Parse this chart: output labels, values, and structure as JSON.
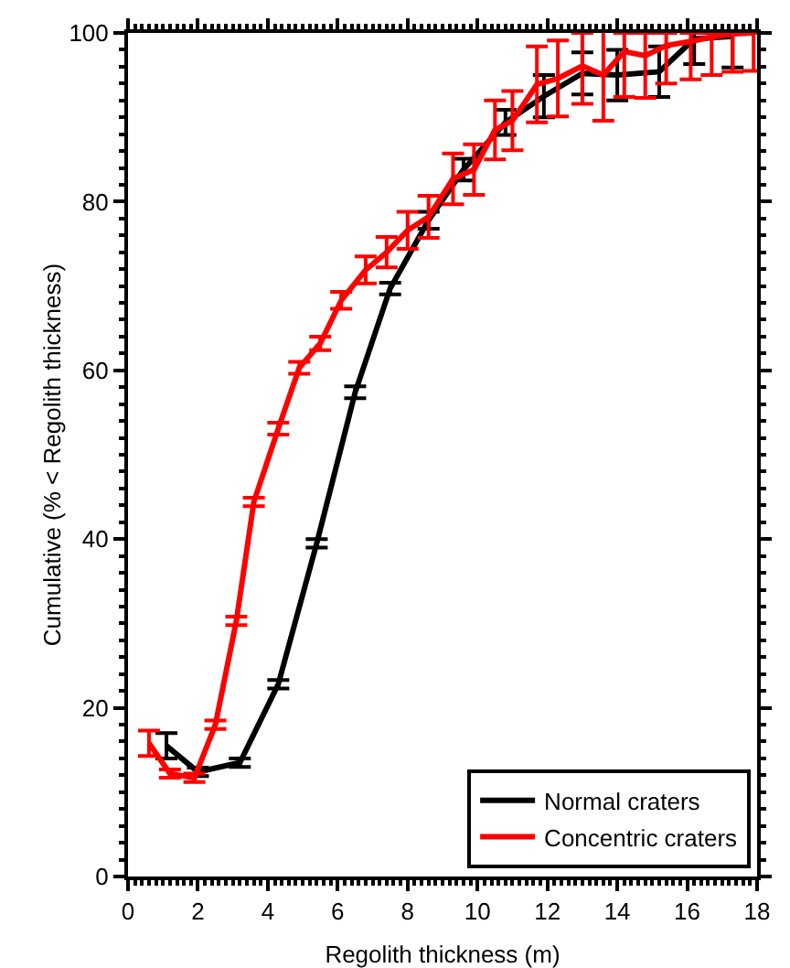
{
  "chart_data": {
    "type": "line",
    "xlabel": "Regolith thickness (m)",
    "ylabel": "Cumulative (% < Regolith thickness)",
    "xlim": [
      0,
      18
    ],
    "xticks": [
      0,
      2,
      4,
      6,
      8,
      10,
      12,
      14,
      16,
      18
    ],
    "ylim": [
      0,
      100
    ],
    "yticks": [
      0,
      20,
      40,
      60,
      80,
      100
    ],
    "grid": false,
    "legend": "bottom right",
    "marker": "none",
    "line_style": "solid",
    "series": [
      {
        "name": "Normal craters",
        "color": "#000000",
        "x": [
          1.1,
          2.0,
          3.2,
          4.3,
          5.4,
          6.5,
          7.5,
          8.6,
          9.6,
          10.8,
          11.9,
          13.0,
          14.0,
          15.2,
          16.2,
          17.3
        ],
        "values": [
          15.5,
          12.4,
          13.5,
          22.8,
          39.5,
          57.4,
          69.7,
          77.8,
          83.8,
          89.4,
          92.5,
          95.2,
          95,
          95.4,
          99.3,
          99.6
        ],
        "errors": [
          1.5,
          0.5,
          0.5,
          0.5,
          0.5,
          0.7,
          0.7,
          1,
          1.3,
          1.5,
          2.5,
          2.5,
          3,
          3,
          [
            96.3,
            100
          ],
          [
            95.9,
            100
          ]
        ]
      },
      {
        "name": "Concentric craters",
        "color": "#ff0000",
        "x": [
          0.6,
          1.2,
          1.9,
          2.5,
          3.1,
          3.6,
          4.3,
          4.9,
          5.5,
          6.1,
          6.8,
          7.4,
          8.0,
          8.6,
          9.3,
          9.9,
          10.5,
          11.0,
          11.7,
          12.3,
          13.0,
          13.6,
          14.2,
          14.8,
          15.4,
          16.1,
          16.7,
          17.3,
          17.9
        ],
        "values": [
          15.8,
          12.2,
          11.7,
          18,
          30.3,
          44.4,
          53.1,
          60.3,
          63.2,
          68.3,
          71.9,
          74,
          76.6,
          78.2,
          82.7,
          83.8,
          88.5,
          89.6,
          93.9,
          94.6,
          96.1,
          95,
          97.8,
          97.3,
          98.5,
          99,
          99.5,
          99.9,
          100
        ],
        "errors": [
          1.5,
          0.5,
          0.5,
          0.5,
          0.5,
          0.5,
          0.7,
          0.7,
          0.8,
          1,
          1.6,
          1.8,
          2.2,
          2.5,
          3,
          3,
          3.5,
          3.5,
          4.5,
          4.5,
          [
            91.6,
            100
          ],
          5.4,
          [
            92.4,
            100
          ],
          [
            92.3,
            100
          ],
          [
            94,
            100
          ],
          [
            94.5,
            100
          ],
          [
            95,
            100
          ],
          [
            95.4,
            100
          ],
          [
            95.5,
            100
          ]
        ]
      }
    ]
  }
}
